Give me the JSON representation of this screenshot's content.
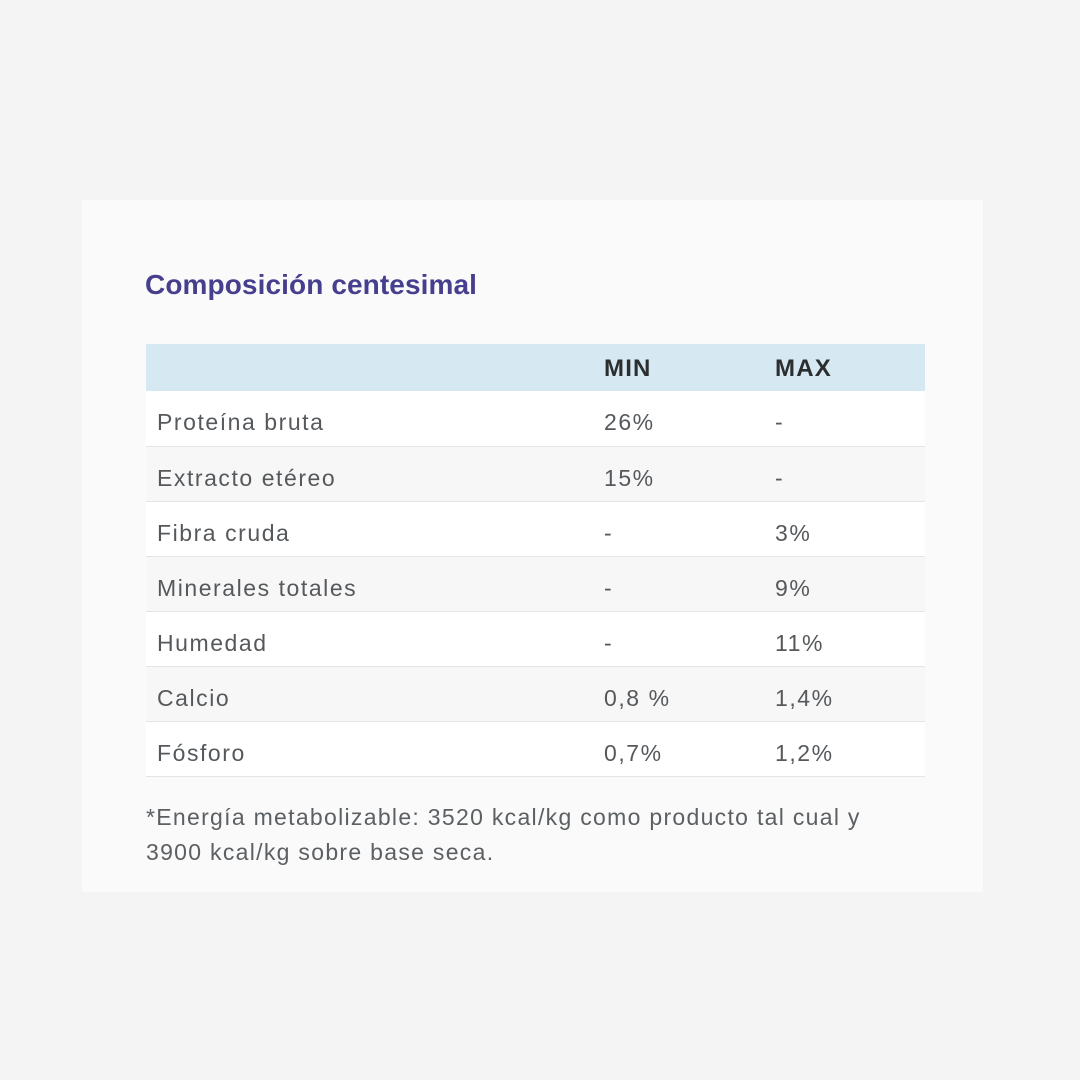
{
  "page": {
    "background_color": "#f4f4f4",
    "card_background_color": "#fafafa"
  },
  "section": {
    "title": "Composición centesimal",
    "title_color": "#463f8e"
  },
  "table": {
    "header_background_color": "#d6e9f3",
    "header": {
      "property": "",
      "min": "MIN",
      "max": "MAX"
    },
    "rows": [
      {
        "name": "Proteína bruta",
        "min": "26%",
        "max": "-"
      },
      {
        "name": "Extracto etéreo",
        "min": "15%",
        "max": "-"
      },
      {
        "name": "Fibra cruda",
        "min": "-",
        "max": "3%"
      },
      {
        "name": "Minerales totales",
        "min": "-",
        "max": "9%"
      },
      {
        "name": "Humedad",
        "min": "-",
        "max": "11%"
      },
      {
        "name": "Calcio",
        "min": "0,8 %",
        "max": "1,4%"
      },
      {
        "name": "Fósforo",
        "min": "0,7%",
        "max": "1,2%"
      }
    ]
  },
  "footnote": {
    "line1": "*Energía metabolizable: 3520 kcal/kg como producto tal cual y",
    "line2": "3900 kcal/kg sobre base seca."
  }
}
